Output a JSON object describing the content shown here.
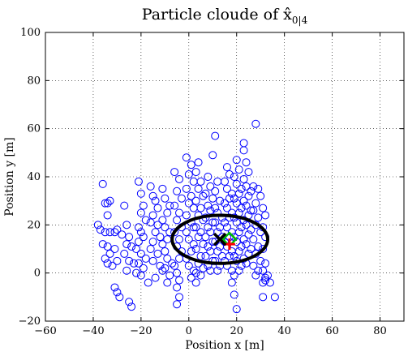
{
  "chart_data": {
    "type": "scatter",
    "title": "Particle cloude of x̂",
    "title_subscript": "0|4",
    "xlabel": "Position x [m]",
    "ylabel": "Position y [m]",
    "xlim": [
      -60,
      90
    ],
    "ylim": [
      -20,
      100
    ],
    "xticks": [
      -60,
      -40,
      -20,
      0,
      20,
      40,
      60,
      80
    ],
    "yticks": [
      -20,
      0,
      20,
      40,
      60,
      80,
      100
    ],
    "grid": true,
    "colors": {
      "particles": "#0000ff",
      "ellipse": "#000000",
      "estimate_x": "#000000",
      "true_position": "#ff0000",
      "diamond": "#00c000"
    },
    "series": [
      {
        "marker": "open-circle",
        "points": [
          [
            -36,
            37
          ],
          [
            -35,
            29
          ],
          [
            -34,
            29
          ],
          [
            -33,
            30
          ],
          [
            -34,
            24
          ],
          [
            -38,
            20
          ],
          [
            -37,
            18
          ],
          [
            -35,
            17
          ],
          [
            -33,
            17
          ],
          [
            -31,
            17
          ],
          [
            -30,
            18
          ],
          [
            -36,
            12
          ],
          [
            -34,
            11
          ],
          [
            -31,
            10
          ],
          [
            -33,
            8
          ],
          [
            -35,
            6
          ],
          [
            -34,
            4
          ],
          [
            -32,
            3
          ],
          [
            -30,
            5
          ],
          [
            -31,
            -6
          ],
          [
            -30,
            -8
          ],
          [
            -29,
            -10
          ],
          [
            -27,
            28
          ],
          [
            -26,
            20
          ],
          [
            -28,
            16
          ],
          [
            -25,
            15
          ],
          [
            -26,
            12
          ],
          [
            -24,
            11
          ],
          [
            -27,
            8
          ],
          [
            -25,
            5
          ],
          [
            -23,
            4
          ],
          [
            -26,
            1
          ],
          [
            -25,
            -12
          ],
          [
            -24,
            -14
          ],
          [
            -21,
            38
          ],
          [
            -20,
            33
          ],
          [
            -19,
            28
          ],
          [
            -20,
            25
          ],
          [
            -18,
            22
          ],
          [
            -21,
            19
          ],
          [
            -20,
            17
          ],
          [
            -19,
            15
          ],
          [
            -21,
            13
          ],
          [
            -22,
            10
          ],
          [
            -20,
            8
          ],
          [
            -18,
            6
          ],
          [
            -21,
            4
          ],
          [
            -19,
            2
          ],
          [
            -22,
            0
          ],
          [
            -20,
            -1
          ],
          [
            -17,
            -4
          ],
          [
            -16,
            36
          ],
          [
            -15,
            32
          ],
          [
            -14,
            30
          ],
          [
            -13,
            27
          ],
          [
            -15,
            24
          ],
          [
            -16,
            21
          ],
          [
            -13,
            20
          ],
          [
            -14,
            17
          ],
          [
            -12,
            15
          ],
          [
            -15,
            13
          ],
          [
            -16,
            10
          ],
          [
            -13,
            8
          ],
          [
            -15,
            5
          ],
          [
            -12,
            3
          ],
          [
            -11,
            1
          ],
          [
            -14,
            -2
          ],
          [
            -11,
            35
          ],
          [
            -10,
            31
          ],
          [
            -8,
            28
          ],
          [
            -9,
            25
          ],
          [
            -11,
            22
          ],
          [
            -10,
            19
          ],
          [
            -8,
            17
          ],
          [
            -9,
            14
          ],
          [
            -11,
            12
          ],
          [
            -10,
            9
          ],
          [
            -9,
            6
          ],
          [
            -7,
            4
          ],
          [
            -10,
            2
          ],
          [
            -8,
            -1
          ],
          [
            -9,
            -4
          ],
          [
            -6,
            42
          ],
          [
            -4,
            39
          ],
          [
            -5,
            34
          ],
          [
            -3,
            31
          ],
          [
            -6,
            28
          ],
          [
            -4,
            25
          ],
          [
            -5,
            22
          ],
          [
            -3,
            19
          ],
          [
            -6,
            17
          ],
          [
            -4,
            14
          ],
          [
            -5,
            11
          ],
          [
            -3,
            9
          ],
          [
            -4,
            6
          ],
          [
            -6,
            3
          ],
          [
            -5,
            0
          ],
          [
            -4,
            -3
          ],
          [
            -5,
            -6
          ],
          [
            -5,
            -13
          ],
          [
            -4,
            -10
          ],
          [
            -1,
            48
          ],
          [
            1,
            45
          ],
          [
            0,
            41
          ],
          [
            2,
            38
          ],
          [
            -1,
            35
          ],
          [
            1,
            32
          ],
          [
            0,
            29
          ],
          [
            2,
            27
          ],
          [
            -1,
            24
          ],
          [
            1,
            21
          ],
          [
            2,
            19
          ],
          [
            -1,
            17
          ],
          [
            0,
            14
          ],
          [
            2,
            12
          ],
          [
            1,
            9
          ],
          [
            -1,
            6
          ],
          [
            0,
            3
          ],
          [
            2,
            1
          ],
          [
            1,
            -2
          ],
          [
            3,
            -4
          ],
          [
            4,
            46
          ],
          [
            3,
            42
          ],
          [
            5,
            38
          ],
          [
            4,
            35
          ],
          [
            6,
            32
          ],
          [
            3,
            30
          ],
          [
            5,
            27
          ],
          [
            4,
            24
          ],
          [
            6,
            22
          ],
          [
            3,
            19
          ],
          [
            5,
            17
          ],
          [
            4,
            15
          ],
          [
            6,
            12
          ],
          [
            3,
            10
          ],
          [
            5,
            7
          ],
          [
            4,
            4
          ],
          [
            6,
            2
          ],
          [
            3,
            0
          ],
          [
            5,
            -1
          ],
          [
            8,
            40
          ],
          [
            9,
            36
          ],
          [
            7,
            33
          ],
          [
            10,
            31
          ],
          [
            8,
            28
          ],
          [
            9,
            26
          ],
          [
            7,
            23
          ],
          [
            10,
            21
          ],
          [
            8,
            19
          ],
          [
            9,
            17
          ],
          [
            7,
            15
          ],
          [
            10,
            13
          ],
          [
            8,
            11
          ],
          [
            9,
            9
          ],
          [
            7,
            7
          ],
          [
            10,
            5
          ],
          [
            8,
            3
          ],
          [
            9,
            1
          ],
          [
            11,
            57
          ],
          [
            10,
            49
          ],
          [
            12,
            38
          ],
          [
            11,
            34
          ],
          [
            13,
            30
          ],
          [
            11,
            27
          ],
          [
            12,
            25
          ],
          [
            14,
            23
          ],
          [
            11,
            21
          ],
          [
            13,
            19
          ],
          [
            12,
            17
          ],
          [
            14,
            15
          ],
          [
            11,
            13
          ],
          [
            13,
            11
          ],
          [
            12,
            9
          ],
          [
            14,
            7
          ],
          [
            11,
            5
          ],
          [
            13,
            3
          ],
          [
            12,
            1
          ],
          [
            16,
            44
          ],
          [
            17,
            41
          ],
          [
            15,
            38
          ],
          [
            16,
            35
          ],
          [
            18,
            33
          ],
          [
            17,
            31
          ],
          [
            15,
            29
          ],
          [
            16,
            27
          ],
          [
            18,
            25
          ],
          [
            17,
            23
          ],
          [
            15,
            21
          ],
          [
            16,
            19
          ],
          [
            18,
            17
          ],
          [
            17,
            15
          ],
          [
            15,
            13
          ],
          [
            16,
            11
          ],
          [
            18,
            9
          ],
          [
            17,
            7
          ],
          [
            15,
            5
          ],
          [
            16,
            3
          ],
          [
            18,
            1
          ],
          [
            20,
            47
          ],
          [
            21,
            43
          ],
          [
            19,
            40
          ],
          [
            20,
            37
          ],
          [
            22,
            35
          ],
          [
            21,
            33
          ],
          [
            19,
            31
          ],
          [
            20,
            29
          ],
          [
            22,
            27
          ],
          [
            21,
            25
          ],
          [
            19,
            23
          ],
          [
            20,
            21
          ],
          [
            22,
            19
          ],
          [
            21,
            17
          ],
          [
            19,
            15
          ],
          [
            20,
            13
          ],
          [
            22,
            11
          ],
          [
            21,
            9
          ],
          [
            19,
            7
          ],
          [
            20,
            5
          ],
          [
            22,
            3
          ],
          [
            21,
            1
          ],
          [
            19,
            -1
          ],
          [
            18,
            -4
          ],
          [
            19,
            -9
          ],
          [
            20,
            -15
          ],
          [
            23,
            54
          ],
          [
            23,
            51
          ],
          [
            24,
            46
          ],
          [
            25,
            42
          ],
          [
            23,
            39
          ],
          [
            24,
            36
          ],
          [
            26,
            34
          ],
          [
            25,
            32
          ],
          [
            23,
            30
          ],
          [
            24,
            28
          ],
          [
            26,
            26
          ],
          [
            25,
            24
          ],
          [
            23,
            22
          ],
          [
            24,
            20
          ],
          [
            26,
            18
          ],
          [
            25,
            16
          ],
          [
            23,
            14
          ],
          [
            24,
            12
          ],
          [
            26,
            10
          ],
          [
            25,
            8
          ],
          [
            23,
            6
          ],
          [
            24,
            4
          ],
          [
            28,
            62
          ],
          [
            27,
            36
          ],
          [
            29,
            35
          ],
          [
            30,
            32
          ],
          [
            28,
            29
          ],
          [
            27,
            26
          ],
          [
            29,
            23
          ],
          [
            28,
            20
          ],
          [
            30,
            17
          ],
          [
            27,
            14
          ],
          [
            29,
            11
          ],
          [
            28,
            8
          ],
          [
            30,
            5
          ],
          [
            27,
            3
          ],
          [
            29,
            1
          ],
          [
            28,
            -1
          ],
          [
            31,
            27
          ],
          [
            32,
            24
          ],
          [
            31,
            19
          ],
          [
            32,
            15
          ],
          [
            31,
            10
          ],
          [
            32,
            4
          ],
          [
            31,
            1
          ],
          [
            32,
            -2
          ],
          [
            31,
            -4
          ],
          [
            33,
            -1
          ],
          [
            32,
            -3
          ],
          [
            34,
            -4
          ],
          [
            31,
            -10
          ],
          [
            36,
            -10
          ]
        ]
      }
    ],
    "covariance_ellipse": {
      "center": [
        13,
        14
      ],
      "semi_axes": [
        20,
        10
      ],
      "angle_deg": 0
    },
    "estimate_marker": {
      "symbol": "x",
      "x": 13,
      "y": 14
    },
    "true_position_marker": {
      "symbol": "+",
      "x": 17,
      "y": 12
    },
    "diamond_marker": {
      "symbol": "diamond",
      "x": 17,
      "y": 14
    }
  }
}
